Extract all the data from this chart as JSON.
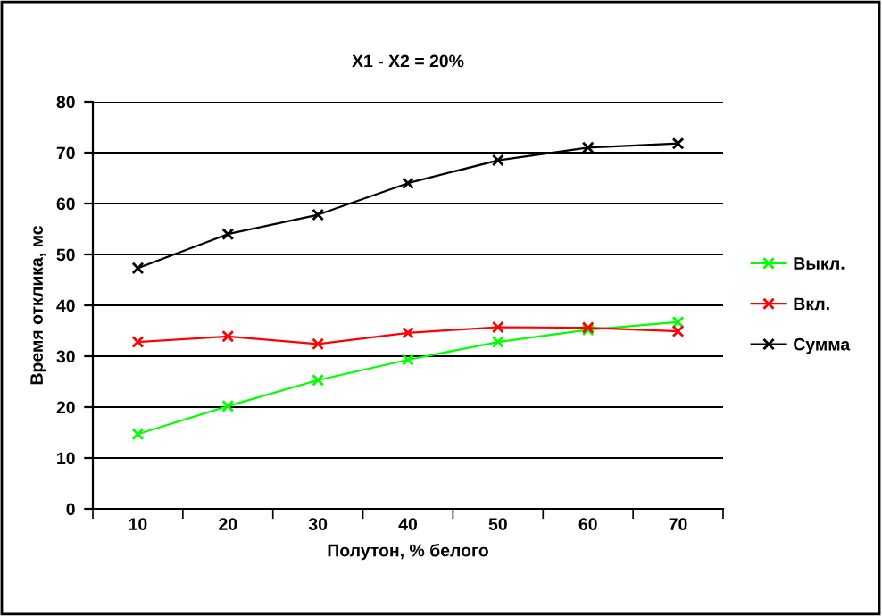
{
  "chart_data": {
    "type": "line",
    "title": "X1 - X2 = 20%",
    "xlabel": "Полутон, % белого",
    "ylabel": "Время отклика, мс",
    "categories": [
      "10",
      "20",
      "30",
      "40",
      "50",
      "60",
      "70"
    ],
    "series": [
      {
        "name": "Выкл.",
        "color": "#00ff00",
        "values": [
          14.7,
          20.2,
          25.3,
          29.3,
          32.8,
          35.2,
          36.7
        ]
      },
      {
        "name": "Вкл.",
        "color": "#ff0000",
        "values": [
          32.8,
          33.9,
          32.4,
          34.6,
          35.7,
          35.6,
          34.9
        ]
      },
      {
        "name": "Сумма",
        "color": "#000000",
        "values": [
          47.3,
          54.0,
          57.8,
          64.0,
          68.5,
          71.0,
          71.8
        ]
      }
    ],
    "ylim": [
      0,
      80
    ],
    "yticks": [
      0,
      10,
      20,
      30,
      40,
      50,
      60,
      70,
      80
    ],
    "grid": "y",
    "legend": "right",
    "marker": "cross",
    "line_style": "solid"
  }
}
